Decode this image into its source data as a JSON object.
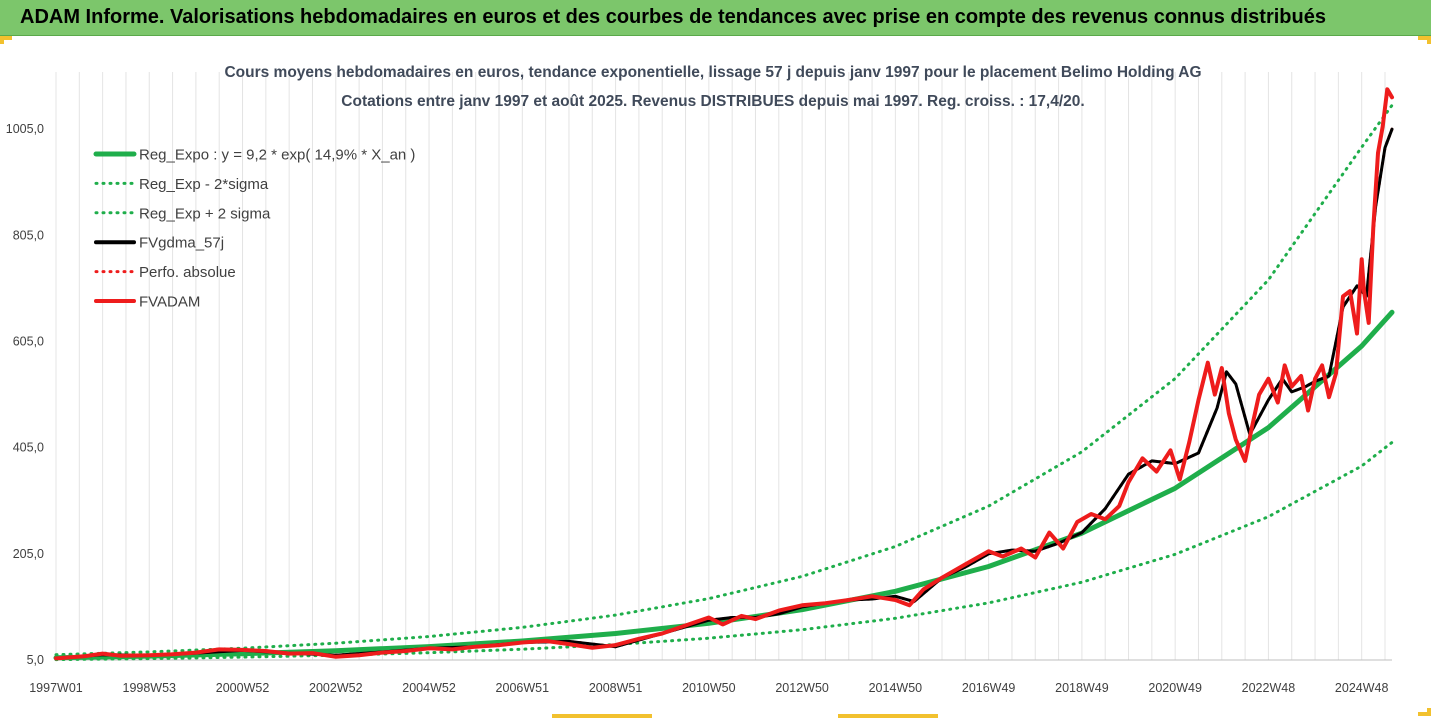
{
  "header": {
    "title": "ADAM Informe. Valorisations hebdomadaires en euros et des courbes de tendances avec prise en compte des revenus connus distribués"
  },
  "colors": {
    "header_bg": "#7cc66b",
    "green": "#1fae4b",
    "black": "#000000",
    "red": "#ee1c1c",
    "grid": "#e4e4e4"
  },
  "chart_data": {
    "type": "line",
    "title": "Cours moyens hebdomadaires en euros, tendance exponentielle, lissage 57 j depuis janv 1997  pour le placement Belimo Holding AG",
    "subtitle": "Cotations entre janv 1997 et août 2025.  Revenus DISTRIBUES depuis mai 1997. Reg. croiss. : 17,4/20.",
    "xlabel": "",
    "ylabel": "",
    "ylim": [
      5,
      1075
    ],
    "xlim": [
      1997.0,
      2025.65
    ],
    "y_ticks": [
      "5,0",
      "205,0",
      "405,0",
      "605,0",
      "805,0",
      "1005,0"
    ],
    "y_tick_values": [
      5,
      205,
      405,
      605,
      805,
      1005
    ],
    "x_ticks": [
      "1997W01",
      "1998W53",
      "2000W52",
      "2002W52",
      "2004W52",
      "2006W51",
      "2008W51",
      "2010W50",
      "2012W50",
      "2014W50",
      "2016W49",
      "2018W49",
      "2020W49",
      "2022W48",
      "2024W48"
    ],
    "x_tick_values": [
      1997.0,
      1999.0,
      2001.0,
      2003.0,
      2005.0,
      2007.0,
      2009.0,
      2011.0,
      2013.0,
      2015.0,
      2017.0,
      2019.0,
      2021.0,
      2023.0,
      2025.0
    ],
    "grid": true,
    "legend_position": "top-left",
    "series": [
      {
        "name": "Reg_Expo : y = 9,2 * exp( 14,9% *  X_an )",
        "color": "#1fae4b",
        "style": "solid",
        "width": 5,
        "x": [
          1997.0,
          1999.0,
          2001.0,
          2003.0,
          2005.0,
          2007.0,
          2009.0,
          2011.0,
          2013.0,
          2015.0,
          2017.0,
          2019.0,
          2021.0,
          2023.0,
          2025.0,
          2025.65
        ],
        "values": [
          9.2,
          12.4,
          16.7,
          22.5,
          30.3,
          40.8,
          55.0,
          74.1,
          99.8,
          134.5,
          181.1,
          244.0,
          328.7,
          442.8,
          596.5,
          660.0
        ]
      },
      {
        "name": "Reg_Exp - 2*sigma",
        "color": "#1fae4b",
        "style": "dotted",
        "width": 3,
        "x": [
          1997.0,
          1999.0,
          2001.0,
          2003.0,
          2005.0,
          2007.0,
          2009.0,
          2011.0,
          2013.0,
          2015.0,
          2017.0,
          2019.0,
          2021.0,
          2023.0,
          2025.0,
          2025.65
        ],
        "values": [
          5.7,
          7.7,
          10.4,
          14.0,
          18.8,
          25.4,
          34.2,
          46.0,
          62.0,
          83.5,
          112.5,
          151.6,
          204.1,
          275.0,
          370.5,
          415.0
        ]
      },
      {
        "name": "Reg_Exp + 2 sigma",
        "color": "#1fae4b",
        "style": "dotted",
        "width": 3,
        "x": [
          1997.0,
          1999.0,
          2001.0,
          2003.0,
          2005.0,
          2007.0,
          2009.0,
          2011.0,
          2013.0,
          2015.0,
          2017.0,
          2019.0,
          2021.0,
          2023.0,
          2025.0,
          2025.65
        ],
        "values": [
          15.0,
          20.2,
          27.2,
          36.6,
          49.3,
          66.5,
          89.5,
          120.6,
          162.5,
          218.9,
          294.9,
          397.2,
          535.2,
          721.0,
          971.1,
          1050.0
        ]
      },
      {
        "name": "FVgdma_57j",
        "color": "#000000",
        "style": "solid",
        "width": 3,
        "x": [
          1997.0,
          1998.0,
          1999.0,
          2000.0,
          2001.0,
          2002.0,
          2003.0,
          2004.0,
          2005.0,
          2006.0,
          2007.0,
          2008.0,
          2009.0,
          2010.0,
          2011.0,
          2011.5,
          2012.0,
          2012.5,
          2013.0,
          2013.5,
          2014.0,
          2014.5,
          2015.0,
          2015.4,
          2016.0,
          2016.5,
          2017.0,
          2017.5,
          2018.0,
          2018.5,
          2019.0,
          2019.5,
          2020.0,
          2020.5,
          2021.0,
          2021.5,
          2021.9,
          2022.1,
          2022.3,
          2022.6,
          2023.0,
          2023.3,
          2023.5,
          2023.8,
          2024.0,
          2024.3,
          2024.6,
          2024.9,
          2025.1,
          2025.3,
          2025.5,
          2025.65
        ],
        "values": [
          8,
          15,
          14,
          18,
          23,
          18,
          14,
          20,
          27,
          30,
          38,
          40,
          30,
          55,
          80,
          85,
          85,
          92,
          105,
          112,
          118,
          120,
          125,
          115,
          160,
          180,
          205,
          212,
          210,
          225,
          245,
          290,
          355,
          380,
          375,
          395,
          480,
          548,
          525,
          430,
          495,
          535,
          510,
          520,
          530,
          540,
          670,
          710,
          690,
          860,
          970,
          1005
        ]
      },
      {
        "name": "Perfo. absolue",
        "color": "#ee1c1c",
        "style": "dotted",
        "width": 3,
        "x": [
          1997.0,
          1998.0,
          1999.0,
          2000.0,
          2001.0,
          2002.0,
          2003.0,
          2004.0,
          2005.0,
          2006.0,
          2007.0,
          2008.0,
          2009.0,
          2010.0,
          2011.0,
          2011.5,
          2012.0,
          2012.5,
          2013.0,
          2013.5,
          2014.0,
          2014.5,
          2015.0,
          2015.4,
          2016.0,
          2016.5,
          2017.0,
          2017.5,
          2018.0,
          2018.5,
          2019.0,
          2019.5,
          2020.0,
          2020.5,
          2021.0,
          2021.5,
          2021.9,
          2022.1,
          2022.3,
          2022.6,
          2023.0,
          2023.3,
          2023.5,
          2023.8,
          2024.0,
          2024.3,
          2024.6,
          2024.9,
          2025.1,
          2025.3,
          2025.5,
          2025.65
        ],
        "values": [
          8,
          15,
          14,
          18,
          23,
          18,
          14,
          20,
          27,
          30,
          38,
          40,
          30,
          55,
          80,
          85,
          85,
          92,
          105,
          112,
          118,
          120,
          125,
          115,
          160,
          180,
          205,
          212,
          210,
          225,
          245,
          290,
          355,
          380,
          375,
          395,
          480,
          548,
          525,
          430,
          495,
          535,
          510,
          520,
          530,
          540,
          670,
          710,
          690,
          860,
          970,
          1005
        ]
      },
      {
        "name": "FVADAM",
        "color": "#ee1c1c",
        "style": "solid",
        "width": 4,
        "x": [
          1997.0,
          1997.6,
          1998.0,
          1998.4,
          1999.0,
          1999.5,
          2000.0,
          2000.5,
          2001.0,
          2001.5,
          2002.0,
          2002.5,
          2003.0,
          2003.5,
          2004.0,
          2004.5,
          2005.0,
          2005.5,
          2006.0,
          2006.5,
          2007.0,
          2007.5,
          2008.0,
          2008.5,
          2009.0,
          2009.5,
          2010.0,
          2010.5,
          2011.0,
          2011.3,
          2011.7,
          2012.0,
          2012.5,
          2013.0,
          2013.5,
          2014.0,
          2014.5,
          2015.0,
          2015.3,
          2015.6,
          2016.0,
          2016.5,
          2017.0,
          2017.3,
          2017.7,
          2018.0,
          2018.3,
          2018.6,
          2018.9,
          2019.2,
          2019.5,
          2019.8,
          2020.0,
          2020.3,
          2020.6,
          2020.9,
          2021.1,
          2021.3,
          2021.5,
          2021.7,
          2021.85,
          2022.0,
          2022.15,
          2022.3,
          2022.5,
          2022.65,
          2022.8,
          2023.0,
          2023.2,
          2023.35,
          2023.5,
          2023.7,
          2023.85,
          2024.0,
          2024.15,
          2024.3,
          2024.45,
          2024.6,
          2024.75,
          2024.9,
          2025.0,
          2025.05,
          2025.15,
          2025.25,
          2025.35,
          2025.45,
          2025.55,
          2025.65
        ],
        "values": [
          8,
          12,
          17,
          13,
          14,
          16,
          19,
          25,
          24,
          22,
          17,
          18,
          11,
          14,
          19,
          22,
          27,
          25,
          30,
          33,
          38,
          41,
          35,
          28,
          33,
          45,
          55,
          70,
          85,
          72,
          88,
          82,
          98,
          108,
          112,
          118,
          125,
          118,
          108,
          138,
          160,
          185,
          210,
          200,
          215,
          198,
          245,
          215,
          265,
          280,
          270,
          295,
          340,
          385,
          360,
          400,
          345,
          415,
          495,
          565,
          505,
          555,
          470,
          420,
          380,
          445,
          505,
          535,
          490,
          560,
          520,
          540,
          475,
          535,
          560,
          500,
          545,
          690,
          700,
          620,
          760,
          700,
          640,
          820,
          960,
          1010,
          1080,
          1065
        ]
      }
    ]
  }
}
